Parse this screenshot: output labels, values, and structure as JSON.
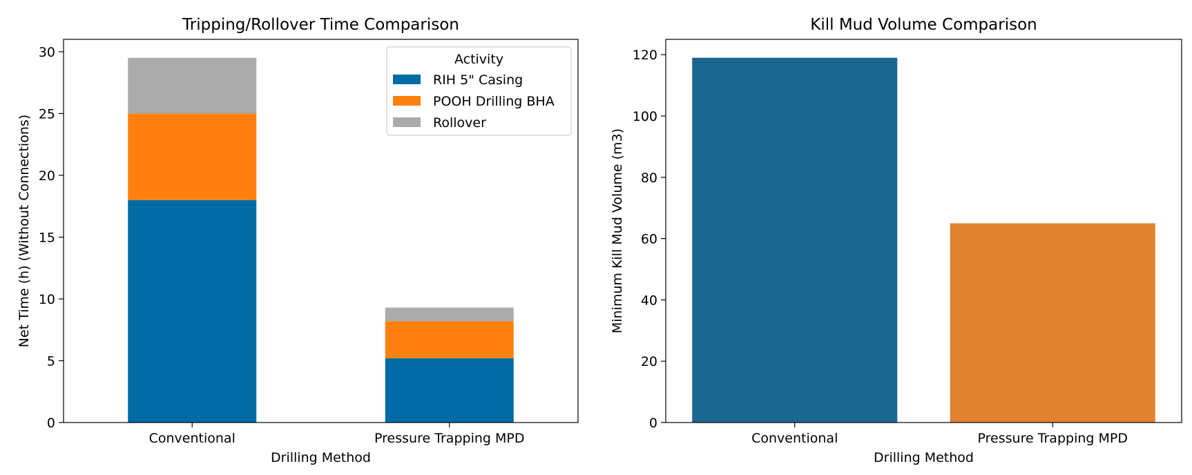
{
  "chart_data": [
    {
      "type": "bar",
      "stacked": true,
      "title": "Tripping/Rollover Time Comparison",
      "xlabel": "Drilling Method",
      "ylabel": "Net Time (h) (Without Connections)",
      "categories": [
        "Conventional",
        "Pressure Trapping MPD"
      ],
      "ylim": [
        0,
        31
      ],
      "yticks": [
        0,
        5,
        10,
        15,
        20,
        25,
        30
      ],
      "legend": {
        "title": "Activity",
        "placement": "top-right"
      },
      "series": [
        {
          "name": "RIH 5\" Casing",
          "values": [
            18,
            5.2
          ],
          "color": "#006BA4"
        },
        {
          "name": "POOH Drilling BHA",
          "values": [
            7,
            3.0
          ],
          "color": "#FF800E"
        },
        {
          "name": "Rollover",
          "values": [
            4.5,
            1.1
          ],
          "color": "#ABABAB"
        }
      ],
      "grid": false
    },
    {
      "type": "bar",
      "title": "Kill Mud Volume Comparison",
      "xlabel": "Drilling Method",
      "ylabel": "Minimum Kill Mud Volume (m3)",
      "categories": [
        "Conventional",
        "Pressure Trapping MPD"
      ],
      "values": [
        119,
        65
      ],
      "colors": [
        "#1A6690",
        "#E0822F"
      ],
      "ylim": [
        0,
        125
      ],
      "yticks": [
        0,
        20,
        40,
        60,
        80,
        100,
        120
      ],
      "grid": false
    }
  ]
}
